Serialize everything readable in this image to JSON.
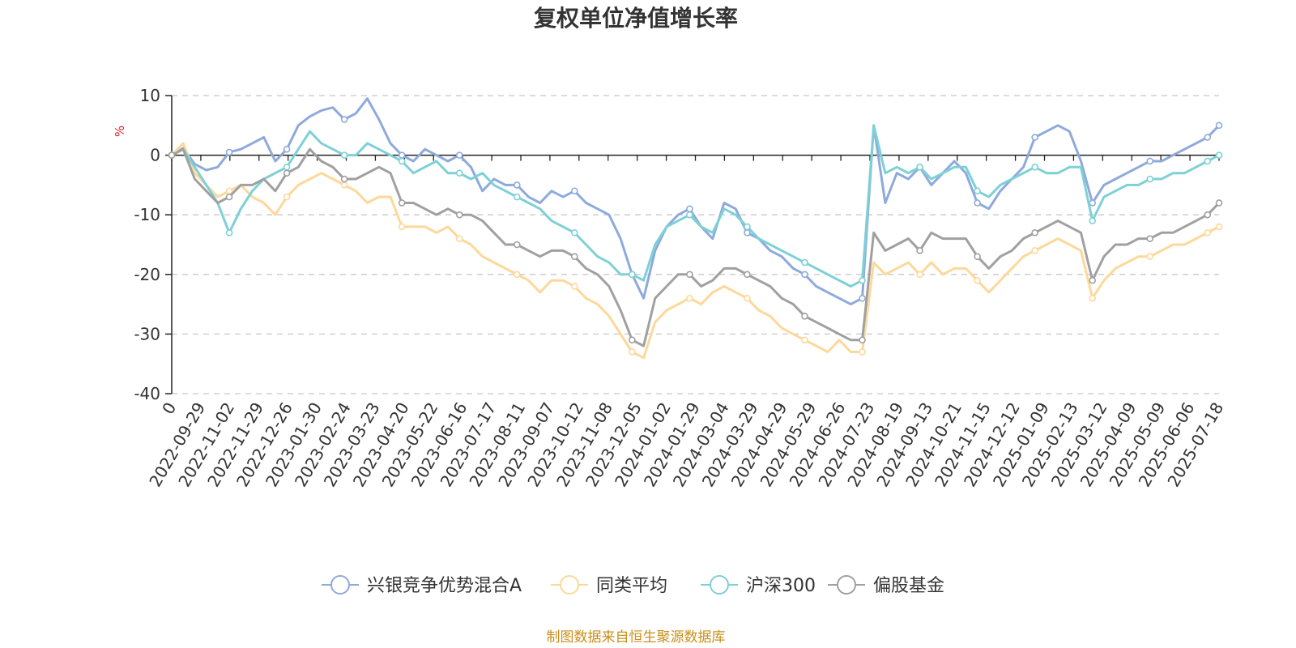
{
  "chart_data": {
    "type": "line",
    "title": "复权单位净值增长率",
    "ylabel": "%",
    "ylim": [
      -40,
      10
    ],
    "yticks": [
      10,
      0,
      -10,
      -20,
      -30,
      -40
    ],
    "grid": true,
    "legend_position": "bottom",
    "source_note": "制图数据来自恒生聚源数据库",
    "x_tick_labels": [
      "2022-09-29",
      "2022-11-02",
      "2022-11-29",
      "2022-12-26",
      "2023-01-30",
      "2023-02-24",
      "2023-03-23",
      "2023-04-20",
      "2023-05-22",
      "2023-06-16",
      "2023-07-17",
      "2023-08-11",
      "2023-09-07",
      "2023-10-12",
      "2023-11-08",
      "2023-12-05",
      "2024-01-02",
      "2024-01-29",
      "2024-03-04",
      "2024-03-29",
      "2024-04-29",
      "2024-05-29",
      "2024-06-26",
      "2024-07-23",
      "2024-08-19",
      "2024-09-13",
      "2024-10-21",
      "2024-11-15",
      "2024-12-12",
      "2025-01-09",
      "2025-02-13",
      "2025-03-12",
      "2025-04-09",
      "2025-05-09",
      "2025-06-06",
      "2025-07-18"
    ],
    "origin_label": "0",
    "series": [
      {
        "name": "兴银竞争优势混合A",
        "color": "#8eaadb",
        "values": [
          0,
          1.2,
          -1.5,
          -2.5,
          -2,
          0.5,
          1,
          2,
          3,
          -1,
          1,
          5,
          6.5,
          7.5,
          8,
          6,
          7,
          9.5,
          6,
          2,
          0,
          -1,
          1,
          0,
          -1,
          0,
          -2,
          -6,
          -4,
          -5,
          -5,
          -7,
          -8,
          -6,
          -7,
          -6,
          -8,
          -9,
          -10,
          -14,
          -20,
          -24,
          -16,
          -12,
          -10,
          -9,
          -12,
          -14,
          -8,
          -9,
          -13,
          -14,
          -16,
          -17,
          -19,
          -20,
          -22,
          -23,
          -24,
          -25,
          -24,
          5,
          -8,
          -3,
          -4,
          -2,
          -5,
          -3,
          -1,
          -3,
          -8,
          -9,
          -6,
          -4,
          -2,
          3,
          4,
          5,
          4,
          -1,
          -8,
          -5,
          -4,
          -3,
          -2,
          -1,
          -1,
          0,
          1,
          2,
          3,
          5
        ]
      },
      {
        "name": "同类平均",
        "color": "#fdd89a",
        "values": [
          0,
          2,
          -3,
          -5,
          -7,
          -6,
          -5,
          -7,
          -8,
          -10,
          -7,
          -5,
          -4,
          -3,
          -4,
          -5,
          -6,
          -8,
          -7,
          -7,
          -12,
          -12,
          -12,
          -13,
          -12,
          -14,
          -15,
          -17,
          -18,
          -19,
          -20,
          -21,
          -23,
          -21,
          -21,
          -22,
          -24,
          -25,
          -27,
          -30,
          -33,
          -34,
          -28,
          -26,
          -25,
          -24,
          -25,
          -23,
          -22,
          -23,
          -24,
          -26,
          -27,
          -29,
          -30,
          -31,
          -32,
          -33,
          -31,
          -33,
          -33,
          -18,
          -20,
          -19,
          -18,
          -20,
          -18,
          -20,
          -19,
          -19,
          -21,
          -23,
          -21,
          -19,
          -17,
          -16,
          -15,
          -14,
          -15,
          -16,
          -24,
          -21,
          -19,
          -18,
          -17,
          -17,
          -16,
          -15,
          -15,
          -14,
          -13,
          -12
        ]
      },
      {
        "name": "沪深300",
        "color": "#7dd1d6",
        "values": [
          0,
          1,
          -2,
          -5,
          -8,
          -13,
          -9,
          -6,
          -4,
          -3,
          -2,
          1,
          4,
          2,
          1,
          0,
          0,
          2,
          1,
          0,
          -1,
          -3,
          -2,
          -1,
          -3,
          -3,
          -4,
          -3,
          -5,
          -6,
          -7,
          -8,
          -9,
          -11,
          -12,
          -13,
          -15,
          -17,
          -18,
          -20,
          -20,
          -21,
          -15,
          -12,
          -11,
          -10,
          -12,
          -13,
          -9,
          -10,
          -12,
          -14,
          -15,
          -16,
          -17,
          -18,
          -19,
          -20,
          -21,
          -22,
          -21,
          5,
          -3,
          -2,
          -3,
          -2,
          -4,
          -3,
          -2,
          -2,
          -6,
          -7,
          -5,
          -4,
          -3,
          -2,
          -3,
          -3,
          -2,
          -2,
          -11,
          -7,
          -6,
          -5,
          -5,
          -4,
          -4,
          -3,
          -3,
          -2,
          -1,
          0
        ]
      },
      {
        "name": "偏股基金",
        "color": "#a0a0a0",
        "values": [
          0,
          1,
          -4,
          -6,
          -8,
          -7,
          -5,
          -5,
          -4,
          -6,
          -3,
          -2,
          1,
          -1,
          -2,
          -4,
          -4,
          -3,
          -2,
          -3,
          -8,
          -8,
          -9,
          -10,
          -9,
          -10,
          -10,
          -11,
          -13,
          -15,
          -15,
          -16,
          -17,
          -16,
          -16,
          -17,
          -19,
          -20,
          -22,
          -26,
          -31,
          -32,
          -24,
          -22,
          -20,
          -20,
          -22,
          -21,
          -19,
          -19,
          -20,
          -21,
          -22,
          -24,
          -25,
          -27,
          -28,
          -29,
          -30,
          -31,
          -31,
          -13,
          -16,
          -15,
          -14,
          -16,
          -13,
          -14,
          -14,
          -14,
          -17,
          -19,
          -17,
          -16,
          -14,
          -13,
          -12,
          -11,
          -12,
          -13,
          -21,
          -17,
          -15,
          -15,
          -14,
          -14,
          -13,
          -13,
          -12,
          -11,
          -10,
          -8
        ]
      }
    ]
  }
}
